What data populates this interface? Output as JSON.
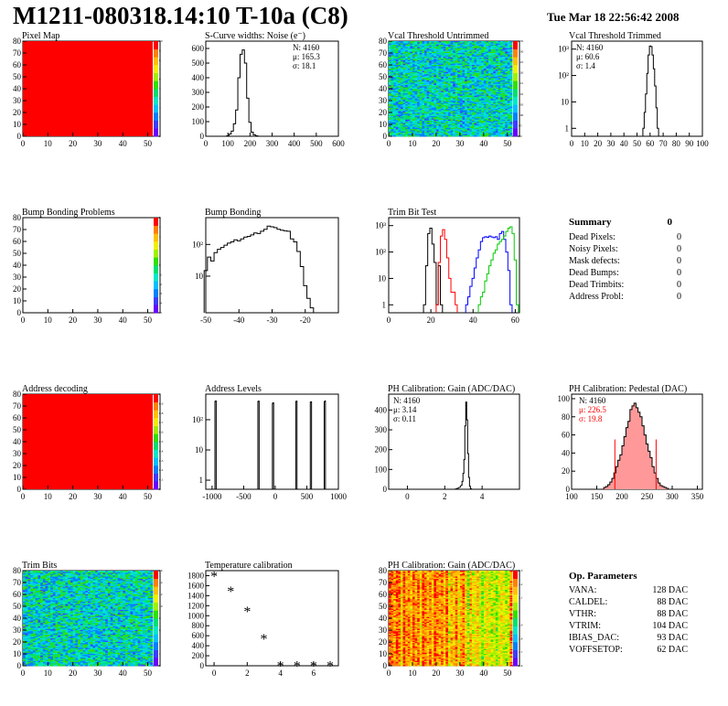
{
  "header": {
    "title": "M1211-080318.14:10 T-10a (C8)",
    "date": "Tue Mar 18 22:56:42 2008"
  },
  "colors": {
    "map_red": "#ff0000",
    "palette": [
      "#6a00ff",
      "#3d3dff",
      "#0080ff",
      "#00c0ff",
      "#00e8c8",
      "#00e070",
      "#30e000",
      "#a0f000",
      "#f0f000",
      "#ffc000",
      "#ff8000",
      "#ff0000"
    ],
    "trim_bit_series": [
      "#000000",
      "#ff0000",
      "#0000ff",
      "#00cc00"
    ],
    "pedestal_fill": "#ff9999"
  },
  "chart_data": [
    {
      "id": "pixel-map",
      "type": "heatmap",
      "title": "Pixel Map",
      "xlim": [
        0,
        52
      ],
      "ylim": [
        0,
        80
      ],
      "xticks": [
        0,
        10,
        20,
        30,
        40,
        50
      ],
      "yticks": [
        0,
        10,
        20,
        30,
        40,
        50,
        60,
        70,
        80
      ],
      "fill": "uniform",
      "palette_labels": [
        "0",
        "1",
        "2",
        "3",
        "4",
        "5",
        "6",
        "7",
        "8",
        "9",
        "10"
      ]
    },
    {
      "id": "scurve-noise",
      "type": "bar",
      "title": "S-Curve widths: Noise (e⁻)",
      "xlim": [
        0,
        600
      ],
      "ylim": [
        0,
        650
      ],
      "xticks": [
        0,
        100,
        200,
        300,
        400,
        500,
        600
      ],
      "yticks": [
        0,
        100,
        200,
        300,
        400,
        500,
        600
      ],
      "stats": [
        "N: 4160",
        "μ: 165.3",
        "σ: 18.1"
      ],
      "bin_width": 10,
      "x": [
        100,
        110,
        120,
        130,
        140,
        150,
        160,
        170,
        180,
        190,
        200,
        210,
        220,
        230
      ],
      "values": [
        3,
        15,
        35,
        85,
        180,
        400,
        560,
        590,
        500,
        260,
        95,
        28,
        10,
        3
      ]
    },
    {
      "id": "vcal-untrimmed",
      "type": "heatmap",
      "title": "Vcal Threshold Untrimmed",
      "xlim": [
        0,
        52
      ],
      "ylim": [
        0,
        80
      ],
      "xticks": [
        0,
        10,
        20,
        30,
        40,
        50
      ],
      "yticks": [
        0,
        10,
        20,
        30,
        40,
        50,
        60,
        70,
        80
      ],
      "fill": "noise",
      "palette_labels": [
        "90",
        "95",
        "100",
        "105",
        "110",
        "115",
        "120",
        "125",
        "130",
        "135"
      ]
    },
    {
      "id": "vcal-trimmed",
      "type": "bar",
      "title": "Vcal Threshold Trimmed",
      "xlim": [
        0,
        100
      ],
      "ylog": true,
      "ylim": [
        0.5,
        2000
      ],
      "xticks": [
        0,
        10,
        20,
        30,
        40,
        50,
        60,
        70,
        80,
        90,
        100
      ],
      "ytick_labels": [
        "1",
        "10",
        "10²",
        "10³"
      ],
      "stats": [
        "N: 4160",
        "μ: 60.6",
        "σ: 1.4"
      ],
      "bin_width": 1,
      "x": [
        55,
        56,
        57,
        58,
        59,
        60,
        61,
        62,
        63,
        64,
        65,
        66
      ],
      "values": [
        1,
        4,
        20,
        120,
        600,
        1300,
        1250,
        600,
        180,
        40,
        6,
        1
      ]
    },
    {
      "id": "bump-bonding-problems",
      "type": "heatmap",
      "title": "Bump Bonding Problems",
      "xlim": [
        0,
        52
      ],
      "ylim": [
        0,
        80
      ],
      "xticks": [
        0,
        10,
        20,
        30,
        40,
        50
      ],
      "yticks": [
        0,
        10,
        20,
        30,
        40,
        50,
        60,
        70,
        80
      ],
      "fill": "empty",
      "palette_labels": [
        "-5",
        "-4",
        "-3",
        "-2",
        "-1",
        "0",
        "1",
        "2",
        "3",
        "4",
        "5"
      ]
    },
    {
      "id": "bump-bonding",
      "type": "bar",
      "title": "Bump Bonding",
      "xlim": [
        -50,
        -10
      ],
      "ylog": true,
      "ylim": [
        0.7,
        700
      ],
      "xticks": [
        -50,
        -40,
        -30,
        -20
      ],
      "ytick_labels": [
        "10",
        "10²"
      ],
      "bin_width": 1,
      "x": [
        -50,
        -49,
        -48,
        -47,
        -46,
        -45,
        -44,
        -43,
        -42,
        -41,
        -40,
        -39,
        -38,
        -37,
        -36,
        -35,
        -34,
        -33,
        -32,
        -31,
        -30,
        -29,
        -28,
        -27,
        -26,
        -25,
        -24,
        -23,
        -22,
        -21,
        -20,
        -19,
        -18
      ],
      "values": [
        15,
        40,
        30,
        55,
        70,
        80,
        95,
        110,
        120,
        140,
        130,
        150,
        170,
        180,
        200,
        230,
        220,
        260,
        300,
        380,
        360,
        340,
        300,
        280,
        270,
        260,
        150,
        120,
        60,
        20,
        5,
        2,
        1
      ]
    },
    {
      "id": "trim-bit-test",
      "type": "bar",
      "title": "Trim Bit Test",
      "xlim": [
        0,
        62
      ],
      "ylog": true,
      "ylim": [
        0.5,
        2000
      ],
      "xticks": [
        0,
        20,
        40,
        60
      ],
      "ytick_labels": [
        "1",
        "10",
        "10²",
        "10³"
      ],
      "series": [
        {
          "x": [
            17,
            18,
            19,
            20,
            21,
            22,
            23,
            24,
            25
          ],
          "values": [
            1,
            30,
            500,
            800,
            200,
            40,
            1,
            30,
            1
          ]
        },
        {
          "x": [
            23,
            24,
            25,
            26,
            27,
            28,
            29,
            30,
            31,
            32
          ],
          "values": [
            1,
            40,
            400,
            700,
            300,
            60,
            10,
            3,
            3,
            1
          ]
        },
        {
          "x": [
            37,
            38,
            39,
            40,
            41,
            42,
            43,
            44,
            45,
            46,
            47,
            48,
            49,
            50,
            51,
            52,
            53,
            54,
            55,
            56,
            57,
            58
          ],
          "values": [
            1,
            2,
            5,
            10,
            25,
            60,
            120,
            250,
            350,
            380,
            360,
            400,
            370,
            350,
            380,
            300,
            500,
            600,
            300,
            100,
            20,
            1
          ]
        },
        {
          "x": [
            43,
            44,
            45,
            46,
            47,
            48,
            49,
            50,
            51,
            52,
            53,
            54,
            55,
            56,
            57,
            58,
            59,
            60,
            61
          ],
          "values": [
            1,
            2,
            3,
            8,
            15,
            30,
            50,
            90,
            120,
            200,
            250,
            300,
            400,
            600,
            800,
            900,
            500,
            50,
            1
          ]
        }
      ]
    },
    {
      "id": "summary",
      "type": "table",
      "title": "Summary",
      "title_value": "0",
      "rows": [
        {
          "label": "Dead Pixels:",
          "value": "0"
        },
        {
          "label": "Noisy Pixels:",
          "value": "0"
        },
        {
          "label": "Mask defects:",
          "value": "0"
        },
        {
          "label": "Dead Bumps:",
          "value": "0"
        },
        {
          "label": "Dead Trimbits:",
          "value": "0"
        },
        {
          "label": "Address Probl:",
          "value": "0"
        }
      ]
    },
    {
      "id": "address-decoding",
      "type": "heatmap",
      "title": "Address decoding",
      "xlim": [
        0,
        52
      ],
      "ylim": [
        0,
        80
      ],
      "xticks": [
        0,
        10,
        20,
        30,
        40,
        50
      ],
      "yticks": [
        0,
        10,
        20,
        30,
        40,
        50,
        60,
        70,
        80
      ],
      "fill": "uniform",
      "palette_labels": [
        "0",
        "0.1",
        "0.2",
        "0.3",
        "0.4",
        "0.5",
        "0.6",
        "0.7",
        "0.8",
        "0.9",
        "1"
      ]
    },
    {
      "id": "address-levels",
      "type": "bar",
      "title": "Address Levels",
      "xlim": [
        -1100,
        1000
      ],
      "ylog": true,
      "ylim": [
        0.5,
        700
      ],
      "xticks": [
        -1000,
        -500,
        0,
        500,
        1000
      ],
      "ytick_labels": [
        "1",
        "10",
        "10²"
      ],
      "bin_width": 10,
      "x": [
        -950,
        -940,
        -270,
        -260,
        -40,
        -30,
        330,
        340,
        560,
        570,
        780,
        790
      ],
      "values": [
        400,
        420,
        400,
        410,
        350,
        360,
        400,
        410,
        380,
        390,
        390,
        420
      ]
    },
    {
      "id": "ph-gain",
      "type": "bar",
      "title": "PH Calibration: Gain (ADC/DAC)",
      "xlim": [
        -1,
        6
      ],
      "ylim": [
        0,
        480
      ],
      "xticks": [
        0,
        2,
        4
      ],
      "yticks": [
        0,
        100,
        200,
        300,
        400
      ],
      "stats": [
        "N: 4160",
        "μ: 3.14",
        "σ: 0.11"
      ],
      "bin_width": 0.05,
      "x": [
        2.6,
        2.7,
        2.8,
        2.9,
        2.95,
        3.0,
        3.05,
        3.1,
        3.15,
        3.2,
        3.25,
        3.3,
        3.35,
        3.4
      ],
      "values": [
        2,
        5,
        10,
        20,
        40,
        80,
        150,
        320,
        440,
        350,
        180,
        60,
        15,
        3
      ]
    },
    {
      "id": "ph-pedestal",
      "type": "bar",
      "title": "PH Calibration: Pedestal (DAC)",
      "xlim": [
        100,
        360
      ],
      "ylim": [
        0,
        105
      ],
      "xticks": [
        100,
        150,
        200,
        250,
        300,
        350
      ],
      "yticks": [
        0,
        20,
        40,
        60,
        80,
        100
      ],
      "stats": [
        "N: 4160",
        "μ: 226.5",
        "σ: 19.8"
      ],
      "bin_width": 4,
      "x": [
        166,
        170,
        174,
        178,
        182,
        186,
        190,
        194,
        198,
        202,
        206,
        210,
        214,
        218,
        222,
        226,
        230,
        234,
        238,
        242,
        246,
        250,
        254,
        258,
        262,
        266,
        270,
        274,
        278,
        282,
        286,
        290
      ],
      "values": [
        2,
        3,
        5,
        8,
        12,
        18,
        25,
        32,
        38,
        48,
        58,
        68,
        75,
        88,
        92,
        95,
        90,
        85,
        80,
        70,
        60,
        50,
        42,
        35,
        25,
        18,
        12,
        7,
        4,
        3,
        2,
        1
      ],
      "cut_lines": [
        186,
        268
      ]
    },
    {
      "id": "trim-bits",
      "type": "heatmap",
      "title": "Trim Bits",
      "xlim": [
        0,
        52
      ],
      "ylim": [
        0,
        80
      ],
      "xticks": [
        0,
        10,
        20,
        30,
        40,
        50
      ],
      "yticks": [
        0,
        10,
        20,
        30,
        40,
        50,
        60,
        70,
        80
      ],
      "fill": "noise",
      "palette_labels": [
        "0",
        "2",
        "4",
        "6",
        "8",
        "10",
        "12",
        "14",
        "16"
      ]
    },
    {
      "id": "temperature-calibration",
      "type": "scatter",
      "title": "Temperature calibration",
      "xlim": [
        -0.5,
        7.5
      ],
      "ylim": [
        0,
        1900
      ],
      "xticks": [
        0,
        2,
        4,
        6
      ],
      "yticks": [
        0,
        200,
        400,
        600,
        800,
        1000,
        1200,
        1400,
        1600,
        1800
      ],
      "x": [
        0,
        1,
        2,
        3,
        4,
        5,
        6,
        7
      ],
      "values": [
        1800,
        1500,
        1100,
        550,
        10,
        10,
        10,
        10
      ]
    },
    {
      "id": "ph-gain-map",
      "type": "heatmap",
      "title": "PH Calibration: Gain (ADC/DAC)",
      "xlim": [
        0,
        52
      ],
      "ylim": [
        0,
        80
      ],
      "xticks": [
        0,
        10,
        20,
        30,
        40,
        50
      ],
      "yticks": [
        0,
        10,
        20,
        30,
        40,
        50,
        60,
        70,
        80
      ],
      "fill": "columns",
      "palette_labels": [
        "2.6",
        "2.7",
        "2.8",
        "2.9",
        "3",
        "3.1",
        "3.2",
        "3.3"
      ]
    },
    {
      "id": "op-parameters",
      "type": "table",
      "title": "Op. Parameters",
      "rows": [
        {
          "label": "VANA:",
          "value": "128 DAC"
        },
        {
          "label": "CALDEL:",
          "value": "88 DAC"
        },
        {
          "label": "VTHR:",
          "value": "88 DAC"
        },
        {
          "label": "VTRIM:",
          "value": "104 DAC"
        },
        {
          "label": "IBIAS_DAC:",
          "value": "93 DAC"
        },
        {
          "label": "VOFFSETOP:",
          "value": "62 DAC"
        }
      ]
    }
  ]
}
